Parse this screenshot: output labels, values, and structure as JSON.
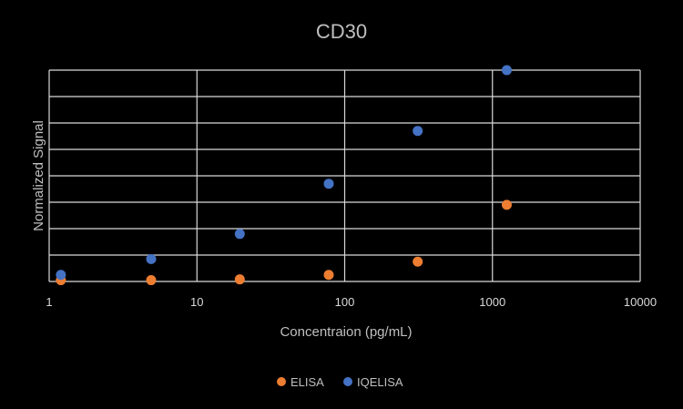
{
  "chart_data": {
    "type": "scatter",
    "title": "CD30",
    "xlabel": "Concentraion (pg/mL)",
    "ylabel": "Normalized Signal",
    "x_scale": "log",
    "xlim": [
      1,
      10000
    ],
    "x_ticks": [
      "1",
      "10",
      "100",
      "1000",
      "10000"
    ],
    "ylim": [
      0,
      8
    ],
    "y_tick_labels_shown": false,
    "grid": true,
    "legend_position": "bottom",
    "series": [
      {
        "name": "ELISA",
        "color": "#ed7d31",
        "points": [
          {
            "x": 1.2,
            "y": 0.05
          },
          {
            "x": 4.9,
            "y": 0.05
          },
          {
            "x": 19.5,
            "y": 0.08
          },
          {
            "x": 78,
            "y": 0.25
          },
          {
            "x": 312,
            "y": 0.75
          },
          {
            "x": 1250,
            "y": 2.9
          }
        ]
      },
      {
        "name": "IQELISA",
        "color": "#4472c4",
        "points": [
          {
            "x": 1.2,
            "y": 0.25
          },
          {
            "x": 4.9,
            "y": 0.85
          },
          {
            "x": 19.5,
            "y": 1.8
          },
          {
            "x": 78,
            "y": 3.7
          },
          {
            "x": 312,
            "y": 5.7
          },
          {
            "x": 1250,
            "y": 8.0
          }
        ]
      }
    ]
  }
}
